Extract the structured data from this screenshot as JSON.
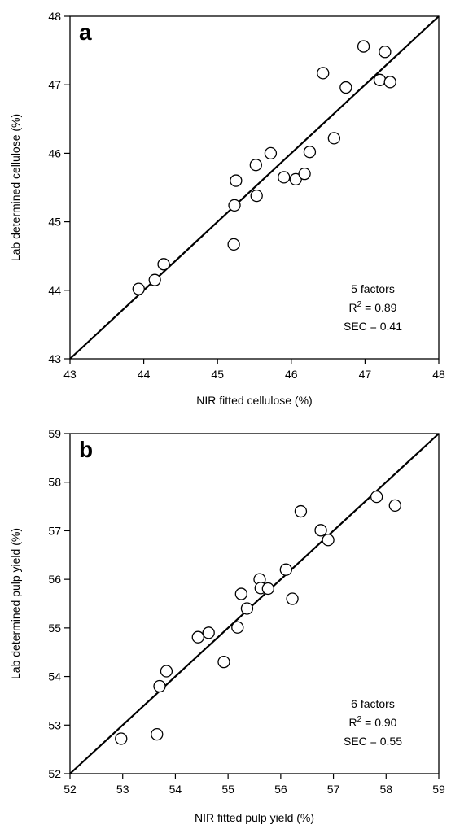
{
  "chart_data": [
    {
      "type": "scatter",
      "panel_label": "a",
      "xlabel": "NIR fitted cellulose (%)",
      "ylabel": "Lab determined cellulose (%)",
      "xlim": [
        43,
        48
      ],
      "ylim": [
        43,
        48
      ],
      "xticks": [
        "43",
        "44",
        "45",
        "46",
        "47",
        "48"
      ],
      "yticks": [
        "43",
        "44",
        "45",
        "46",
        "47",
        "48"
      ],
      "grid": false,
      "fit_line": [
        [
          43,
          43
        ],
        [
          48,
          48
        ]
      ],
      "annotations": {
        "line1": "5 factors",
        "r2_prefix": "R",
        "r2_sup": "2",
        "r2_value": " = 0.89",
        "sec": "SEC = 0.41"
      },
      "points": [
        [
          43.93,
          44.02
        ],
        [
          44.15,
          44.15
        ],
        [
          44.27,
          44.38
        ],
        [
          45.22,
          44.67
        ],
        [
          45.23,
          45.24
        ],
        [
          45.25,
          45.6
        ],
        [
          45.53,
          45.38
        ],
        [
          45.52,
          45.83
        ],
        [
          45.72,
          46.0
        ],
        [
          45.9,
          45.65
        ],
        [
          46.06,
          45.62
        ],
        [
          46.18,
          45.7
        ],
        [
          46.25,
          46.02
        ],
        [
          46.43,
          47.17
        ],
        [
          46.58,
          46.22
        ],
        [
          46.74,
          46.96
        ],
        [
          46.98,
          47.56
        ],
        [
          47.2,
          47.07
        ],
        [
          47.27,
          47.48
        ],
        [
          47.34,
          47.04
        ]
      ]
    },
    {
      "type": "scatter",
      "panel_label": "b",
      "xlabel": "NIR fitted pulp yield (%)",
      "ylabel": "Lab determined pulp yield (%)",
      "xlim": [
        52,
        59
      ],
      "ylim": [
        52,
        59
      ],
      "xticks": [
        "52",
        "53",
        "54",
        "55",
        "56",
        "57",
        "58",
        "59"
      ],
      "yticks": [
        "52",
        "53",
        "54",
        "55",
        "56",
        "57",
        "58",
        "59"
      ],
      "grid": false,
      "fit_line": [
        [
          52,
          52
        ],
        [
          59,
          59
        ]
      ],
      "annotations": {
        "line1": "6 factors",
        "r2_prefix": "R",
        "r2_sup": "2",
        "r2_value": " = 0.90",
        "sec": "SEC = 0.55"
      },
      "points": [
        [
          52.97,
          52.72
        ],
        [
          53.65,
          52.81
        ],
        [
          53.7,
          53.8
        ],
        [
          53.83,
          54.11
        ],
        [
          54.43,
          54.81
        ],
        [
          54.63,
          54.9
        ],
        [
          54.92,
          54.3
        ],
        [
          55.18,
          55.01
        ],
        [
          55.25,
          55.7
        ],
        [
          55.36,
          55.4
        ],
        [
          55.6,
          56.0
        ],
        [
          55.62,
          55.82
        ],
        [
          55.76,
          55.81
        ],
        [
          56.1,
          56.2
        ],
        [
          56.22,
          55.6
        ],
        [
          56.38,
          57.4
        ],
        [
          56.76,
          57.01
        ],
        [
          56.9,
          56.81
        ],
        [
          57.82,
          57.7
        ],
        [
          58.17,
          57.52
        ]
      ]
    }
  ]
}
